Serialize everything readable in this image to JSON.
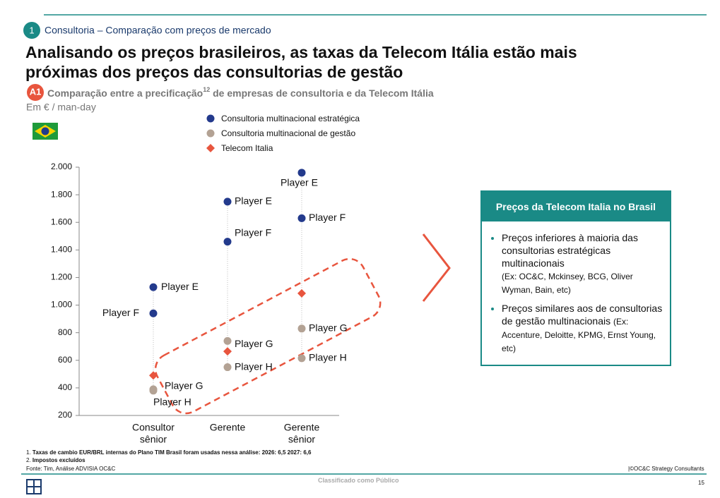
{
  "section": {
    "number": "1",
    "label": "Consultoria – Comparação com preços de mercado"
  },
  "title": [
    "Analisando os preços brasileiros, as taxas da Telecom Itália estão mais",
    "próximas dos preços das consultorias de gestão"
  ],
  "subtitle": {
    "badge": "A1",
    "text_before": "Comparação entre a precificação",
    "superscript": "12",
    "text_after": " de empresas de consultoria e da Telecom Itália",
    "unit": "Em € / man-day"
  },
  "chart_data": {
    "type": "dot",
    "categories": [
      [
        "Consultor",
        "sênior"
      ],
      [
        "Gerente"
      ],
      [
        "Gerente",
        "sênior"
      ]
    ],
    "ylim": [
      200,
      2000
    ],
    "yticks": [
      200,
      400,
      600,
      800,
      {
        "value": 1000,
        "label": "1.000"
      },
      {
        "value": 1200,
        "label": "1.200"
      },
      {
        "value": 1400,
        "label": "1.400"
      },
      {
        "value": 1600,
        "label": "1.600"
      },
      {
        "value": 1800,
        "label": "1.800"
      },
      {
        "value": 2000,
        "label": "2.000"
      }
    ],
    "series": [
      {
        "name": "Consultoria multinacional estratégica",
        "color": "#233a8c",
        "marker": "circle",
        "players": [
          {
            "name": "Player E",
            "values": [
              1130,
              1750,
              1960
            ]
          },
          {
            "name": "Player F",
            "values": [
              940,
              1460,
              1630
            ]
          }
        ]
      },
      {
        "name": "Consultoria multinacional de gestão",
        "color": "#b3a294",
        "marker": "circle",
        "players": [
          {
            "name": "Player G",
            "values": [
              390,
              740,
              830
            ]
          },
          {
            "name": "Player H",
            "values": [
              380,
              550,
              615
            ]
          }
        ]
      },
      {
        "name": "Telecom Italia",
        "color": "#e8553e",
        "marker": "diamond",
        "values": [
          490,
          665,
          1085
        ]
      }
    ]
  },
  "box": {
    "title": "Preços da Telecom Italia no Brasil",
    "bullets": [
      {
        "text": "Preços inferiores à maioria das consultorias estratégicas multinacionais",
        "note": "(Ex: OC&C, Mckinsey, BCG, Oliver Wyman, Bain, etc)"
      },
      {
        "text": "Preços similares aos de consultorias de gestão multinacionais",
        "note": "(Ex: Accenture, Deloitte, KPMG, Ernst Young, etc)"
      }
    ]
  },
  "footnotes": [
    {
      "number": "1.",
      "text": "Taxas de cambio EUR/BRL internas do Plano TIM Brasil foram usadas nessa análise: 2026: 6,5 2027: 6,6"
    },
    {
      "number": "2.",
      "text": "Impostos excluídos"
    }
  ],
  "source": "Fonte: Tim, Análise ADVISIA OC&C",
  "copyright": "|©OC&C Strategy Consultants",
  "classification": "Classificado como Público",
  "page": "15"
}
